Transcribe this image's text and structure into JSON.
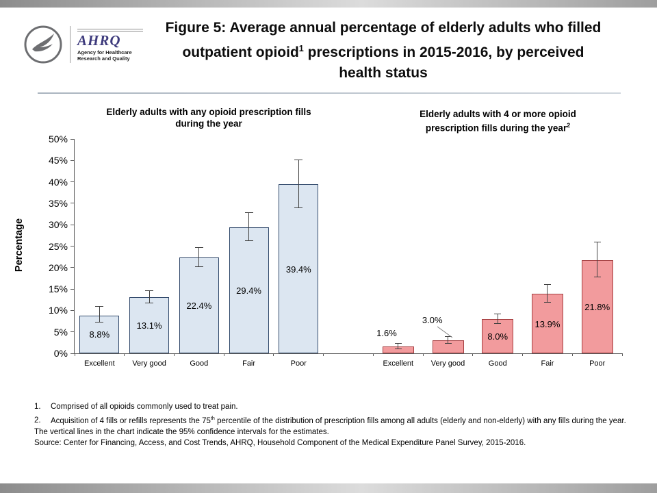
{
  "header": {
    "ahrq": {
      "wordmark": "AHRQ",
      "tagline_line1": "Agency for Healthcare",
      "tagline_line2": "Research and Quality"
    },
    "title": {
      "line1": "Figure 5: Average annual percentage of elderly adults who filled",
      "line2_before_sup": "outpatient opioid",
      "line2_sup": "1",
      "line2_after_sup": " prescriptions in 2015-2016, by perceived",
      "line3": "health status"
    }
  },
  "chart_data": {
    "type": "bar",
    "ylabel": "Percentage",
    "ylim": [
      0,
      50
    ],
    "ytick_step": 5,
    "ytick_suffix": "%",
    "grid": false,
    "legend": "none",
    "error_bars": "95% confidence intervals",
    "categories": [
      "Excellent",
      "Very good",
      "Good",
      "Fair",
      "Poor"
    ],
    "groups": [
      {
        "title_line1": "Elderly adults with any opioid prescription fills",
        "title_line2": "during the year",
        "bar_fill": "#dce6f1",
        "bar_border": "#31496b",
        "values": [
          8.8,
          13.1,
          22.4,
          29.4,
          39.4
        ],
        "value_labels": [
          "8.8%",
          "13.1%",
          "22.4%",
          "29.4%",
          "39.4%"
        ],
        "ci_low": [
          7.2,
          11.7,
          20.2,
          26.2,
          33.8
        ],
        "ci_high": [
          10.9,
          14.6,
          24.6,
          32.7,
          45.1
        ],
        "label_positions": [
          "inside",
          "inside",
          "inside",
          "inside",
          "inside"
        ]
      },
      {
        "title_line1": "Elderly adults with 4 or more opioid",
        "title_line2_before_sup": "prescription fills during the year",
        "title_sup": "2",
        "bar_fill": "#f29b9d",
        "bar_border": "#a43d3f",
        "values": [
          1.6,
          3.0,
          8.0,
          13.9,
          21.8
        ],
        "value_labels": [
          "1.6%",
          "3.0%",
          "8.0%",
          "13.9%",
          "21.8%"
        ],
        "ci_low": [
          1.0,
          2.2,
          6.9,
          11.9,
          17.8
        ],
        "ci_high": [
          2.2,
          3.9,
          9.1,
          15.9,
          25.9
        ],
        "label_positions": [
          "left",
          "callout",
          "inside",
          "inside",
          "inside"
        ]
      }
    ]
  },
  "footnotes": {
    "f1": {
      "num": "1.",
      "text": "Comprised of all opioids commonly used to treat pain."
    },
    "f2": {
      "num": "2.",
      "before_sup": "Acquisition of 4 fills or refills represents the 75",
      "sup": "th",
      "after_sup": " percentile of the distribution of prescription fills among all adults (elderly and non-elderly) with any fills during the year."
    },
    "ci": "The vertical lines in the chart indicate the 95% confidence intervals for the estimates.",
    "source": "Source: Center for Financing, Access, and Cost Trends, AHRQ, Household Component of the Medical Expenditure Panel Survey, 2015-2016."
  }
}
